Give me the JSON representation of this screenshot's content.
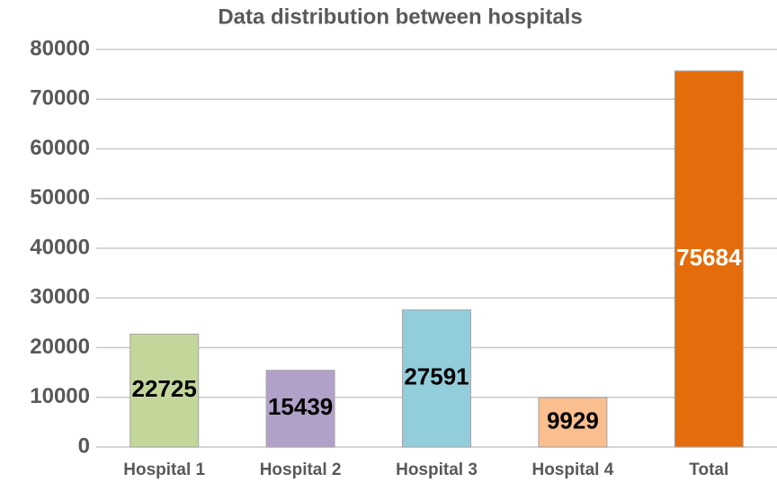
{
  "chart_data": {
    "type": "bar",
    "title": "Data distribution between hospitals",
    "categories": [
      "Hospital 1",
      "Hospital 2",
      "Hospital 3",
      "Hospital 4",
      "Total"
    ],
    "values": [
      22725,
      15439,
      27591,
      9929,
      75684
    ],
    "colors": [
      "#c4d79b",
      "#b1a0c7",
      "#92cddc",
      "#fabf8f",
      "#e46c0a"
    ],
    "label_colors": [
      "#000000",
      "#000000",
      "#000000",
      "#000000",
      "#ffffff"
    ],
    "ylim": [
      0,
      80000
    ],
    "yticks": [
      0,
      10000,
      20000,
      30000,
      40000,
      50000,
      60000,
      70000,
      80000
    ],
    "grid": true
  }
}
